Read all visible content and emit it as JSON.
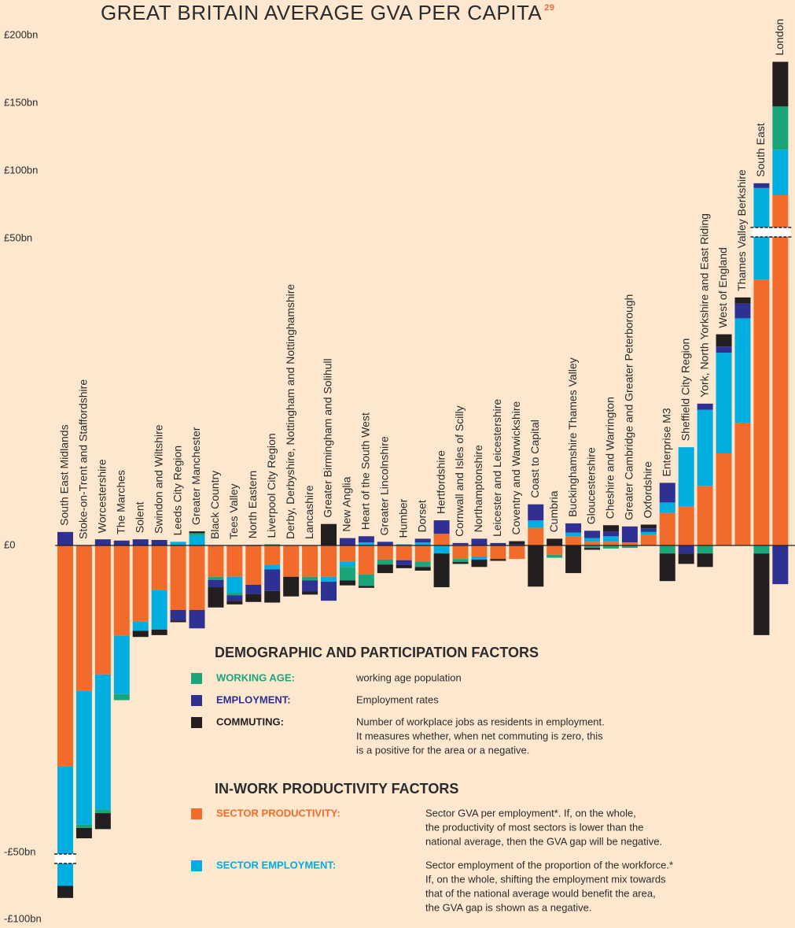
{
  "chart_data": {
    "type": "bar",
    "title": "GREAT BRITAIN AVERAGE GVA PER CAPITA",
    "title_note": "29",
    "categories": [
      "South East Midlands",
      "Stoke-on-Trent and Staffordshire",
      "Worcestershire",
      "The Marches",
      "Solent",
      "Swindon and Wiltshire",
      "Leeds City Region",
      "Greater Manchester",
      "Black Country",
      "Tees Valley",
      "North Eastern",
      "Liverpool City Region",
      "Derby, Derbyshire, Nottingham and Nottinghamshire",
      "Lancashire",
      "Greater Birmingham and Solihull",
      "New Anglia",
      "Heart of the South West",
      "Greater Lincolnshire",
      "Humber",
      "Dorset",
      "Hertfordshire",
      "Cornwall and Isles of Scilly",
      "Northamptonshire",
      "Leicester and Leicestershire",
      "Coventry and Warwickshire",
      "Coast to Capital",
      "Cumbria",
      "Buckinghamshire Thames Valley",
      "Gloucestershire",
      "Cheshire and Warrington",
      "Greater Cambridge and Greater Peterborough",
      "Oxfordshire",
      "Enterprise M3",
      "Sheffield City Region",
      "York, North Yorkshire and East Riding",
      "West of England",
      "Thames Valley Berkshire",
      "South East",
      "London"
    ],
    "groups": [
      {
        "title": "DEMOGRAPHIC AND PARTICIPATION FACTORS",
        "series": [
          {
            "name": "WORKING AGE:",
            "color": "#1aa67a",
            "description": [
              "working age population"
            ],
            "values": [
              0,
              -0.5,
              -0.6,
              -1,
              0,
              0,
              0,
              0.4,
              -0.5,
              -0.4,
              0.1,
              0.2,
              0,
              -0.6,
              0,
              -2.2,
              -1.9,
              -0.8,
              0,
              -0.9,
              0,
              -0.5,
              0,
              0,
              0,
              0,
              -0.5,
              0,
              -0.4,
              -0.5,
              -0.4,
              0,
              -1.3,
              0,
              -1.3,
              0,
              0,
              -1.3,
              32
            ]
          },
          {
            "name": "EMPLOYMENT:",
            "color": "#2e3192",
            "description": [
              "Employment rates"
            ],
            "values": [
              2.2,
              0,
              1,
              0.8,
              1,
              0.9,
              -1.7,
              -3,
              -1.2,
              -0.9,
              -1.5,
              -3.5,
              0,
              -1.8,
              -3.1,
              1.2,
              1,
              0.6,
              -0.8,
              0.6,
              2.2,
              0.3,
              1.1,
              0.4,
              0.2,
              2.6,
              0,
              1.5,
              1.2,
              0.8,
              2.6,
              0.6,
              3.2,
              -1.3,
              1,
              1,
              2.4,
              3.5,
              -6.3
            ]
          },
          {
            "name": "COMMUTING:",
            "color": "#231f20",
            "description": [
              "Number of workplace jobs as residents in employment.",
              "It measures whether, when net commuting is zero, this",
              "is a positive for the area or a negative."
            ],
            "values": [
              -9,
              -1.7,
              -2.6,
              0,
              -1,
              -0.9,
              -0.3,
              0.3,
              -3.3,
              -0.6,
              -1.3,
              -1.9,
              -3.2,
              -0.5,
              3.5,
              -0.8,
              -0.3,
              -1.4,
              -0.5,
              -0.6,
              -5.5,
              -0.3,
              -1.2,
              -0.3,
              0.5,
              -6.7,
              1.1,
              -4.5,
              -0.3,
              1,
              0,
              0.6,
              -4.5,
              -1.7,
              -2.2,
              2,
              1,
              -13.3,
              33
            ]
          }
        ]
      },
      {
        "title": "IN-WORK PRODUCTIVITY FACTORS",
        "series": [
          {
            "name": "SECTOR PRODUCTIVITY:",
            "color": "#f26b2a",
            "description": [
              "Sector GVA per employment*. If, on the whole,",
              "the productivity of most sectors is lower than the",
              "national average, then the GVA gap will be negative."
            ],
            "values": [
              -36,
              -23.7,
              -21,
              -14.7,
              -12.4,
              -7.3,
              -10.5,
              -10.5,
              -5.1,
              -5.1,
              -6.4,
              -3.1,
              -5.1,
              -5.1,
              -5.1,
              -2.6,
              -4.7,
              -2.3,
              -2.4,
              -2.6,
              1.9,
              -2.2,
              -1.8,
              -2.2,
              -2.2,
              2.9,
              -1.5,
              1.5,
              0.6,
              0.6,
              0.5,
              1.7,
              5.3,
              6.4,
              9.7,
              15,
              20,
              43.3,
              82
            ]
          },
          {
            "name": "SECTOR EMPLOYMENT:",
            "color": "#00aee0",
            "description": [
              "Sector employment of the proportion of the workforce.*",
              "If, on the whole, shifting the employment mix towards",
              "that of the national average would benefit the area,",
              "the GVA gap is shown as a negative."
            ],
            "values": [
              -39,
              -21.8,
              -22,
              -9.5,
              -1.5,
              -6.4,
              0.6,
              1.6,
              0,
              -2.6,
              0,
              -0.8,
              0,
              0,
              -0.8,
              -0.9,
              0.5,
              0,
              0.2,
              0.5,
              -1.3,
              0.1,
              -0.5,
              0,
              0,
              1.2,
              0,
              0.6,
              0.6,
              0.9,
              0,
              0.5,
              1.7,
              9.6,
              12.4,
              16.4,
              17,
              44,
              33.5
            ]
          }
        ]
      }
    ],
    "ylim": [
      -100,
      200
    ],
    "axis_breaks": [
      -50,
      50
    ],
    "yticks": [
      {
        "value": -100,
        "label": "-£100bn"
      },
      {
        "value": -50,
        "label": "-£50bn"
      },
      {
        "value": 0,
        "label": "£0"
      },
      {
        "value": 50,
        "label": "£50bn"
      },
      {
        "value": 100,
        "label": "£100bn"
      },
      {
        "value": 150,
        "label": "£150bn"
      },
      {
        "value": 200,
        "label": "£200bn"
      }
    ],
    "grid": false
  }
}
